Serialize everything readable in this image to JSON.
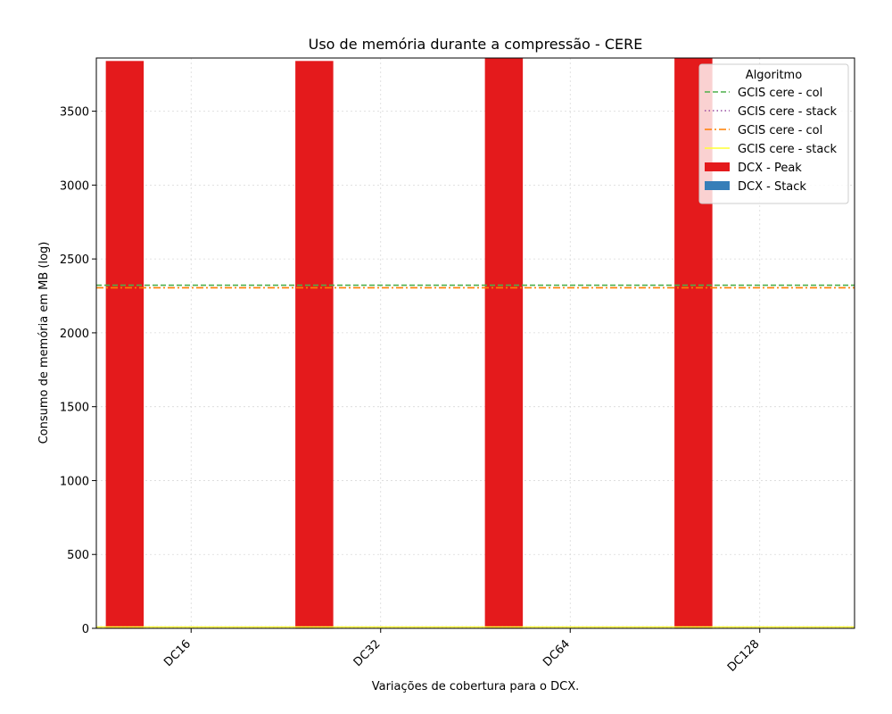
{
  "chart_data": {
    "type": "bar",
    "title": "Uso de memória durante a compressão -  CERE",
    "xlabel": "Variações de cobertura para o DCX.",
    "ylabel": "Consumo de memória em MB (log)",
    "categories": [
      "DC16",
      "DC32",
      "DC64",
      "DC128"
    ],
    "ylim": [
      0,
      3860
    ],
    "yticks": [
      0,
      500,
      1000,
      1500,
      2000,
      2500,
      3000,
      3500
    ],
    "grid": true,
    "legend": {
      "title": "Algoritmo",
      "placement": "upper-right"
    },
    "series": [
      {
        "name": "DCX - Peak",
        "kind": "bar",
        "color": "#e41a1c",
        "values": [
          3840,
          3840,
          3860,
          3860
        ]
      },
      {
        "name": "DCX - Stack",
        "kind": "bar",
        "color": "#377eb8",
        "values": [
          0,
          0,
          0,
          0
        ]
      }
    ],
    "reference_lines": [
      {
        "name": "GCIS cere - col",
        "value": 2322,
        "color": "#4daf4a",
        "style": "dashed"
      },
      {
        "name": "GCIS cere - stack",
        "value": 9,
        "color": "#984ea3",
        "style": "dotted"
      },
      {
        "name": "GCIS cere - col",
        "value": 2305,
        "color": "#ff7f00",
        "style": "dashdot"
      },
      {
        "name": "GCIS cere - stack",
        "value": 9,
        "color": "#ffff33",
        "style": "solid"
      }
    ],
    "legend_order": [
      {
        "ref": "line",
        "index": 0
      },
      {
        "ref": "line",
        "index": 1
      },
      {
        "ref": "line",
        "index": 2
      },
      {
        "ref": "line",
        "index": 3
      },
      {
        "ref": "bar",
        "index": 0
      },
      {
        "ref": "bar",
        "index": 1
      }
    ]
  }
}
